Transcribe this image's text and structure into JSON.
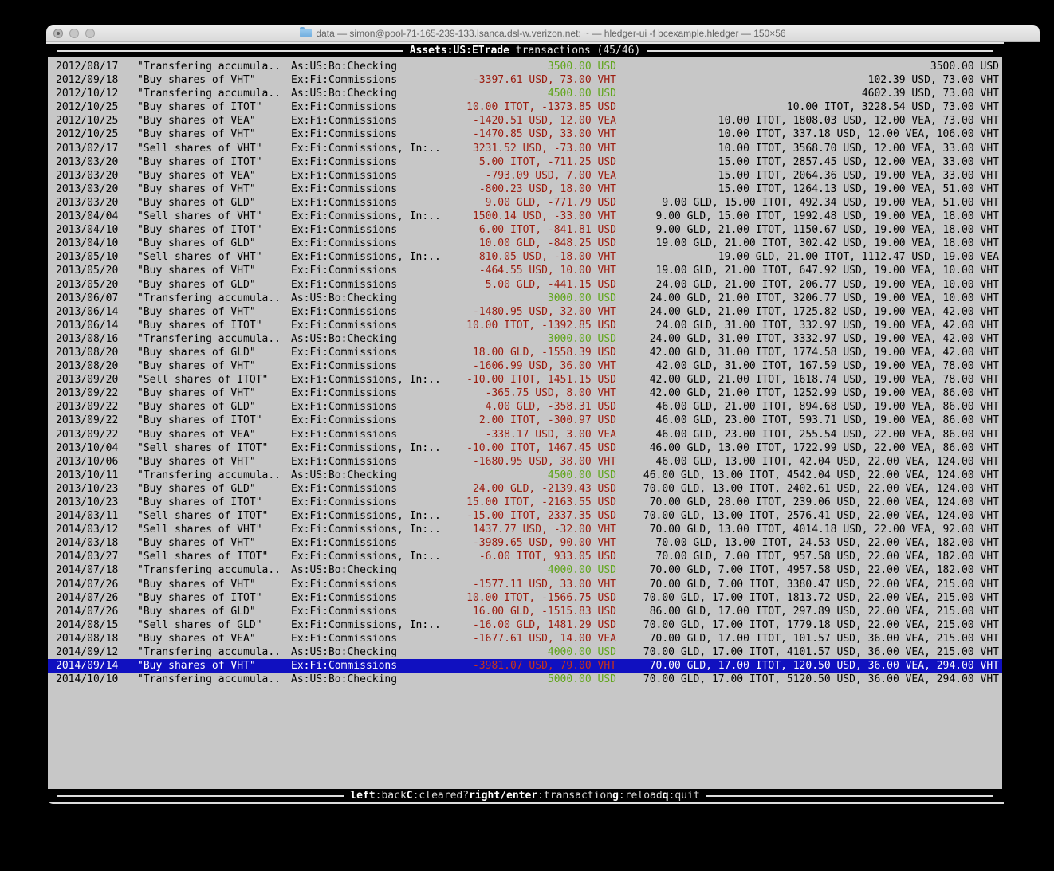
{
  "titlebar": {
    "title": "data — simon@pool-71-165-239-133.lsanca.dsl-w.verizon.net: ~ — hledger-ui -f bcexample.hledger — 150×56"
  },
  "topbar": {
    "account": "Assets:US:ETrade",
    "rest": " transactions (45/46)"
  },
  "helpbar": {
    "items": [
      {
        "key": "left",
        "desc": ":back"
      },
      {
        "key": "C",
        "desc": ":cleared?"
      },
      {
        "key": "right/enter",
        "desc": ":transaction"
      },
      {
        "key": "g",
        "desc": ":reload"
      },
      {
        "key": "q",
        "desc": ":quit"
      }
    ]
  },
  "colors": {
    "term_bg": "#c7c7c7",
    "pos": "#61a51d",
    "neg": "#9b1b0e",
    "sel_bg": "#1010c0",
    "sel_fg": "#ffffff",
    "sel_neg": "#c93418"
  },
  "register": {
    "rows": [
      {
        "date": "2012/08/17",
        "desc": "\"Transfering accumula..",
        "acct": "As:US:Bo:Checking",
        "amt": "3500.00 USD",
        "cls": "pos",
        "bal": "3500.00 USD"
      },
      {
        "date": "2012/09/18",
        "desc": "\"Buy shares of VHT\"",
        "acct": "Ex:Fi:Commissions",
        "amt": "-3397.61 USD, 73.00 VHT",
        "cls": "neg",
        "bal": "102.39 USD, 73.00 VHT"
      },
      {
        "date": "2012/10/12",
        "desc": "\"Transfering accumula..",
        "acct": "As:US:Bo:Checking",
        "amt": "4500.00 USD",
        "cls": "pos",
        "bal": "4602.39 USD, 73.00 VHT"
      },
      {
        "date": "2012/10/25",
        "desc": "\"Buy shares of ITOT\"",
        "acct": "Ex:Fi:Commissions",
        "amt": "10.00 ITOT, -1373.85 USD",
        "cls": "neg",
        "bal": "10.00 ITOT, 3228.54 USD, 73.00 VHT"
      },
      {
        "date": "2012/10/25",
        "desc": "\"Buy shares of VEA\"",
        "acct": "Ex:Fi:Commissions",
        "amt": "-1420.51 USD, 12.00 VEA",
        "cls": "neg",
        "bal": "10.00 ITOT, 1808.03 USD, 12.00 VEA, 73.00 VHT"
      },
      {
        "date": "2012/10/25",
        "desc": "\"Buy shares of VHT\"",
        "acct": "Ex:Fi:Commissions",
        "amt": "-1470.85 USD, 33.00 VHT",
        "cls": "neg",
        "bal": "10.00 ITOT, 337.18 USD, 12.00 VEA, 106.00 VHT"
      },
      {
        "date": "2013/02/17",
        "desc": "\"Sell shares of VHT\"",
        "acct": "Ex:Fi:Commissions, In:..",
        "amt": "3231.52 USD, -73.00 VHT",
        "cls": "neg",
        "bal": "10.00 ITOT, 3568.70 USD, 12.00 VEA, 33.00 VHT"
      },
      {
        "date": "2013/03/20",
        "desc": "\"Buy shares of ITOT\"",
        "acct": "Ex:Fi:Commissions",
        "amt": "5.00 ITOT, -711.25 USD",
        "cls": "neg",
        "bal": "15.00 ITOT, 2857.45 USD, 12.00 VEA, 33.00 VHT"
      },
      {
        "date": "2013/03/20",
        "desc": "\"Buy shares of VEA\"",
        "acct": "Ex:Fi:Commissions",
        "amt": "-793.09 USD, 7.00 VEA",
        "cls": "neg",
        "bal": "15.00 ITOT, 2064.36 USD, 19.00 VEA, 33.00 VHT"
      },
      {
        "date": "2013/03/20",
        "desc": "\"Buy shares of VHT\"",
        "acct": "Ex:Fi:Commissions",
        "amt": "-800.23 USD, 18.00 VHT",
        "cls": "neg",
        "bal": "15.00 ITOT, 1264.13 USD, 19.00 VEA, 51.00 VHT"
      },
      {
        "date": "2013/03/20",
        "desc": "\"Buy shares of GLD\"",
        "acct": "Ex:Fi:Commissions",
        "amt": "9.00 GLD, -771.79 USD",
        "cls": "neg",
        "bal": "9.00 GLD, 15.00 ITOT, 492.34 USD, 19.00 VEA, 51.00 VHT"
      },
      {
        "date": "2013/04/04",
        "desc": "\"Sell shares of VHT\"",
        "acct": "Ex:Fi:Commissions, In:..",
        "amt": "1500.14 USD, -33.00 VHT",
        "cls": "neg",
        "bal": "9.00 GLD, 15.00 ITOT, 1992.48 USD, 19.00 VEA, 18.00 VHT"
      },
      {
        "date": "2013/04/10",
        "desc": "\"Buy shares of ITOT\"",
        "acct": "Ex:Fi:Commissions",
        "amt": "6.00 ITOT, -841.81 USD",
        "cls": "neg",
        "bal": "9.00 GLD, 21.00 ITOT, 1150.67 USD, 19.00 VEA, 18.00 VHT"
      },
      {
        "date": "2013/04/10",
        "desc": "\"Buy shares of GLD\"",
        "acct": "Ex:Fi:Commissions",
        "amt": "10.00 GLD, -848.25 USD",
        "cls": "neg",
        "bal": "19.00 GLD, 21.00 ITOT, 302.42 USD, 19.00 VEA, 18.00 VHT"
      },
      {
        "date": "2013/05/10",
        "desc": "\"Sell shares of VHT\"",
        "acct": "Ex:Fi:Commissions, In:..",
        "amt": "810.05 USD, -18.00 VHT",
        "cls": "neg",
        "bal": "19.00 GLD, 21.00 ITOT, 1112.47 USD, 19.00 VEA"
      },
      {
        "date": "2013/05/20",
        "desc": "\"Buy shares of VHT\"",
        "acct": "Ex:Fi:Commissions",
        "amt": "-464.55 USD, 10.00 VHT",
        "cls": "neg",
        "bal": "19.00 GLD, 21.00 ITOT, 647.92 USD, 19.00 VEA, 10.00 VHT"
      },
      {
        "date": "2013/05/20",
        "desc": "\"Buy shares of GLD\"",
        "acct": "Ex:Fi:Commissions",
        "amt": "5.00 GLD, -441.15 USD",
        "cls": "neg",
        "bal": "24.00 GLD, 21.00 ITOT, 206.77 USD, 19.00 VEA, 10.00 VHT"
      },
      {
        "date": "2013/06/07",
        "desc": "\"Transfering accumula..",
        "acct": "As:US:Bo:Checking",
        "amt": "3000.00 USD",
        "cls": "pos",
        "bal": "24.00 GLD, 21.00 ITOT, 3206.77 USD, 19.00 VEA, 10.00 VHT"
      },
      {
        "date": "2013/06/14",
        "desc": "\"Buy shares of VHT\"",
        "acct": "Ex:Fi:Commissions",
        "amt": "-1480.95 USD, 32.00 VHT",
        "cls": "neg",
        "bal": "24.00 GLD, 21.00 ITOT, 1725.82 USD, 19.00 VEA, 42.00 VHT"
      },
      {
        "date": "2013/06/14",
        "desc": "\"Buy shares of ITOT\"",
        "acct": "Ex:Fi:Commissions",
        "amt": "10.00 ITOT, -1392.85 USD",
        "cls": "neg",
        "bal": "24.00 GLD, 31.00 ITOT, 332.97 USD, 19.00 VEA, 42.00 VHT"
      },
      {
        "date": "2013/08/16",
        "desc": "\"Transfering accumula..",
        "acct": "As:US:Bo:Checking",
        "amt": "3000.00 USD",
        "cls": "pos",
        "bal": "24.00 GLD, 31.00 ITOT, 3332.97 USD, 19.00 VEA, 42.00 VHT"
      },
      {
        "date": "2013/08/20",
        "desc": "\"Buy shares of GLD\"",
        "acct": "Ex:Fi:Commissions",
        "amt": "18.00 GLD, -1558.39 USD",
        "cls": "neg",
        "bal": "42.00 GLD, 31.00 ITOT, 1774.58 USD, 19.00 VEA, 42.00 VHT"
      },
      {
        "date": "2013/08/20",
        "desc": "\"Buy shares of VHT\"",
        "acct": "Ex:Fi:Commissions",
        "amt": "-1606.99 USD, 36.00 VHT",
        "cls": "neg",
        "bal": "42.00 GLD, 31.00 ITOT, 167.59 USD, 19.00 VEA, 78.00 VHT"
      },
      {
        "date": "2013/09/20",
        "desc": "\"Sell shares of ITOT\"",
        "acct": "Ex:Fi:Commissions, In:..",
        "amt": "-10.00 ITOT, 1451.15 USD",
        "cls": "neg",
        "bal": "42.00 GLD, 21.00 ITOT, 1618.74 USD, 19.00 VEA, 78.00 VHT"
      },
      {
        "date": "2013/09/22",
        "desc": "\"Buy shares of VHT\"",
        "acct": "Ex:Fi:Commissions",
        "amt": "-365.75 USD, 8.00 VHT",
        "cls": "neg",
        "bal": "42.00 GLD, 21.00 ITOT, 1252.99 USD, 19.00 VEA, 86.00 VHT"
      },
      {
        "date": "2013/09/22",
        "desc": "\"Buy shares of GLD\"",
        "acct": "Ex:Fi:Commissions",
        "amt": "4.00 GLD, -358.31 USD",
        "cls": "neg",
        "bal": "46.00 GLD, 21.00 ITOT, 894.68 USD, 19.00 VEA, 86.00 VHT"
      },
      {
        "date": "2013/09/22",
        "desc": "\"Buy shares of ITOT\"",
        "acct": "Ex:Fi:Commissions",
        "amt": "2.00 ITOT, -300.97 USD",
        "cls": "neg",
        "bal": "46.00 GLD, 23.00 ITOT, 593.71 USD, 19.00 VEA, 86.00 VHT"
      },
      {
        "date": "2013/09/22",
        "desc": "\"Buy shares of VEA\"",
        "acct": "Ex:Fi:Commissions",
        "amt": "-338.17 USD, 3.00 VEA",
        "cls": "neg",
        "bal": "46.00 GLD, 23.00 ITOT, 255.54 USD, 22.00 VEA, 86.00 VHT"
      },
      {
        "date": "2013/10/04",
        "desc": "\"Sell shares of ITOT\"",
        "acct": "Ex:Fi:Commissions, In:..",
        "amt": "-10.00 ITOT, 1467.45 USD",
        "cls": "neg",
        "bal": "46.00 GLD, 13.00 ITOT, 1722.99 USD, 22.00 VEA, 86.00 VHT"
      },
      {
        "date": "2013/10/06",
        "desc": "\"Buy shares of VHT\"",
        "acct": "Ex:Fi:Commissions",
        "amt": "-1680.95 USD, 38.00 VHT",
        "cls": "neg",
        "bal": "46.00 GLD, 13.00 ITOT, 42.04 USD, 22.00 VEA, 124.00 VHT"
      },
      {
        "date": "2013/10/11",
        "desc": "\"Transfering accumula..",
        "acct": "As:US:Bo:Checking",
        "amt": "4500.00 USD",
        "cls": "pos",
        "bal": "46.00 GLD, 13.00 ITOT, 4542.04 USD, 22.00 VEA, 124.00 VHT"
      },
      {
        "date": "2013/10/23",
        "desc": "\"Buy shares of GLD\"",
        "acct": "Ex:Fi:Commissions",
        "amt": "24.00 GLD, -2139.43 USD",
        "cls": "neg",
        "bal": "70.00 GLD, 13.00 ITOT, 2402.61 USD, 22.00 VEA, 124.00 VHT"
      },
      {
        "date": "2013/10/23",
        "desc": "\"Buy shares of ITOT\"",
        "acct": "Ex:Fi:Commissions",
        "amt": "15.00 ITOT, -2163.55 USD",
        "cls": "neg",
        "bal": "70.00 GLD, 28.00 ITOT, 239.06 USD, 22.00 VEA, 124.00 VHT"
      },
      {
        "date": "2014/03/11",
        "desc": "\"Sell shares of ITOT\"",
        "acct": "Ex:Fi:Commissions, In:..",
        "amt": "-15.00 ITOT, 2337.35 USD",
        "cls": "neg",
        "bal": "70.00 GLD, 13.00 ITOT, 2576.41 USD, 22.00 VEA, 124.00 VHT"
      },
      {
        "date": "2014/03/12",
        "desc": "\"Sell shares of VHT\"",
        "acct": "Ex:Fi:Commissions, In:..",
        "amt": "1437.77 USD, -32.00 VHT",
        "cls": "neg",
        "bal": "70.00 GLD, 13.00 ITOT, 4014.18 USD, 22.00 VEA, 92.00 VHT"
      },
      {
        "date": "2014/03/18",
        "desc": "\"Buy shares of VHT\"",
        "acct": "Ex:Fi:Commissions",
        "amt": "-3989.65 USD, 90.00 VHT",
        "cls": "neg",
        "bal": "70.00 GLD, 13.00 ITOT, 24.53 USD, 22.00 VEA, 182.00 VHT"
      },
      {
        "date": "2014/03/27",
        "desc": "\"Sell shares of ITOT\"",
        "acct": "Ex:Fi:Commissions, In:..",
        "amt": "-6.00 ITOT, 933.05 USD",
        "cls": "neg",
        "bal": "70.00 GLD, 7.00 ITOT, 957.58 USD, 22.00 VEA, 182.00 VHT"
      },
      {
        "date": "2014/07/18",
        "desc": "\"Transfering accumula..",
        "acct": "As:US:Bo:Checking",
        "amt": "4000.00 USD",
        "cls": "pos",
        "bal": "70.00 GLD, 7.00 ITOT, 4957.58 USD, 22.00 VEA, 182.00 VHT"
      },
      {
        "date": "2014/07/26",
        "desc": "\"Buy shares of VHT\"",
        "acct": "Ex:Fi:Commissions",
        "amt": "-1577.11 USD, 33.00 VHT",
        "cls": "neg",
        "bal": "70.00 GLD, 7.00 ITOT, 3380.47 USD, 22.00 VEA, 215.00 VHT"
      },
      {
        "date": "2014/07/26",
        "desc": "\"Buy shares of ITOT\"",
        "acct": "Ex:Fi:Commissions",
        "amt": "10.00 ITOT, -1566.75 USD",
        "cls": "neg",
        "bal": "70.00 GLD, 17.00 ITOT, 1813.72 USD, 22.00 VEA, 215.00 VHT"
      },
      {
        "date": "2014/07/26",
        "desc": "\"Buy shares of GLD\"",
        "acct": "Ex:Fi:Commissions",
        "amt": "16.00 GLD, -1515.83 USD",
        "cls": "neg",
        "bal": "86.00 GLD, 17.00 ITOT, 297.89 USD, 22.00 VEA, 215.00 VHT"
      },
      {
        "date": "2014/08/15",
        "desc": "\"Sell shares of GLD\"",
        "acct": "Ex:Fi:Commissions, In:..",
        "amt": "-16.00 GLD, 1481.29 USD",
        "cls": "neg",
        "bal": "70.00 GLD, 17.00 ITOT, 1779.18 USD, 22.00 VEA, 215.00 VHT"
      },
      {
        "date": "2014/08/18",
        "desc": "\"Buy shares of VEA\"",
        "acct": "Ex:Fi:Commissions",
        "amt": "-1677.61 USD, 14.00 VEA",
        "cls": "neg",
        "bal": "70.00 GLD, 17.00 ITOT, 101.57 USD, 36.00 VEA, 215.00 VHT"
      },
      {
        "date": "2014/09/12",
        "desc": "\"Transfering accumula..",
        "acct": "As:US:Bo:Checking",
        "amt": "4000.00 USD",
        "cls": "pos",
        "bal": "70.00 GLD, 17.00 ITOT, 4101.57 USD, 36.00 VEA, 215.00 VHT"
      },
      {
        "date": "2014/09/14",
        "desc": "\"Buy shares of VHT\"",
        "acct": "Ex:Fi:Commissions",
        "amt": "-3981.07 USD, 79.00 VHT",
        "cls": "neg",
        "sel": true,
        "bal": "70.00 GLD, 17.00 ITOT, 120.50 USD, 36.00 VEA, 294.00 VHT"
      },
      {
        "date": "2014/10/10",
        "desc": "\"Transfering accumula..",
        "acct": "As:US:Bo:Checking",
        "amt": "5000.00 USD",
        "cls": "pos",
        "bal": "70.00 GLD, 17.00 ITOT, 5120.50 USD, 36.00 VEA, 294.00 VHT"
      }
    ]
  }
}
